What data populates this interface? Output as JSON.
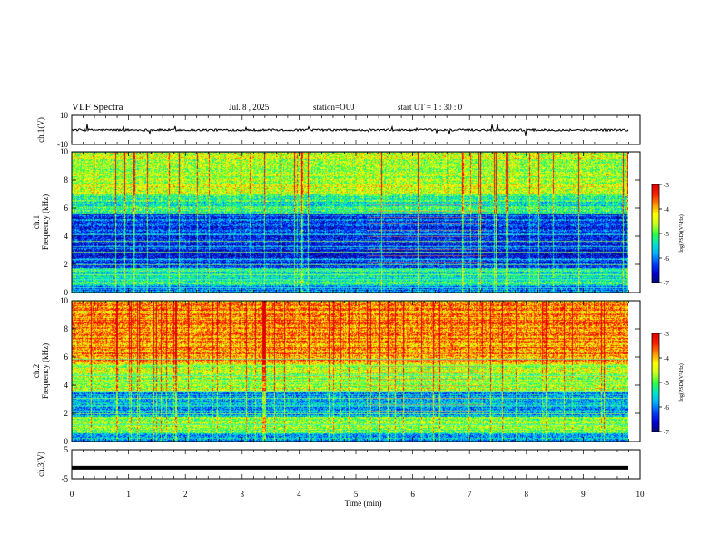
{
  "header": {
    "title": "VLF Spectra",
    "date": "Jul. 8 , 2025",
    "station": "station=OUJ",
    "start": "start UT =  1 : 30 : 0"
  },
  "colorbar": {
    "label": "log(PSD)(V²/Hz)",
    "ticks": [
      "-3",
      "-4",
      "-5",
      "-6",
      "-7"
    ]
  },
  "colors": {
    "spectrum": [
      "#0a0a70",
      "#0000d8",
      "#0044ff",
      "#00b0ff",
      "#00e8c8",
      "#30ff40",
      "#c8ff20",
      "#ffff00",
      "#ff9000",
      "#ff2000",
      "#e00000"
    ],
    "trace": "#000000"
  },
  "chart_data": [
    {
      "type": "line",
      "panel": "ch1-waveform",
      "ylabel": "ch.1(V)",
      "ylim": [
        -10,
        10
      ],
      "y_tick_labels": [
        "10",
        "-10"
      ],
      "xlim": [
        0,
        10
      ],
      "description_values": {
        "baseline": 0,
        "noise_amplitude": 1.5,
        "spike_amplitude": 6
      }
    },
    {
      "type": "heatmap",
      "panel": "ch1-spectrogram",
      "ylabel": "ch.1 Frequency (kHz)",
      "ylim": [
        0,
        10
      ],
      "y_tick_labels": [
        "0",
        "2",
        "4",
        "6",
        "8",
        "10"
      ],
      "xlim": [
        0,
        9.8
      ],
      "color_range": [
        -7,
        -3
      ],
      "band_levels": [
        {
          "f_low": 0,
          "f_high": 0.5,
          "level": 0.25
        },
        {
          "f_low": 0.5,
          "f_high": 1.8,
          "level": 0.42
        },
        {
          "f_low": 1.8,
          "f_high": 3.6,
          "level": 0.18
        },
        {
          "f_low": 3.6,
          "f_high": 5.6,
          "level": 0.2
        },
        {
          "f_low": 5.6,
          "f_high": 7.0,
          "level": 0.45
        },
        {
          "f_low": 7.0,
          "f_high": 10,
          "level": 0.62
        }
      ],
      "harmonic_lines_khz": [
        0.4,
        0.7,
        1.0,
        1.3,
        1.6,
        2.0,
        2.4,
        2.9,
        3.3,
        3.7,
        4.1
      ],
      "burst_interval_min": [
        5.2,
        7.3
      ]
    },
    {
      "type": "heatmap",
      "panel": "ch2-spectrogram",
      "ylabel": "ch.2 Frequency (kHz)",
      "ylim": [
        0,
        10
      ],
      "y_tick_labels": [
        "0",
        "2",
        "4",
        "6",
        "8",
        "10"
      ],
      "xlim": [
        0,
        9.8
      ],
      "color_range": [
        -7,
        -3
      ],
      "band_levels": [
        {
          "f_low": 0,
          "f_high": 0.6,
          "level": 0.3
        },
        {
          "f_low": 0.6,
          "f_high": 1.8,
          "level": 0.55
        },
        {
          "f_low": 1.8,
          "f_high": 3.5,
          "level": 0.3
        },
        {
          "f_low": 3.5,
          "f_high": 5.5,
          "level": 0.6
        },
        {
          "f_low": 5.5,
          "f_high": 10,
          "level": 0.8
        }
      ],
      "harmonic_lines_khz": [
        1.2,
        2.0,
        2.6,
        3.1,
        3.6,
        4.2,
        4.7,
        5.4,
        5.9
      ],
      "burst_interval_min": [
        5.2,
        7.3
      ]
    },
    {
      "type": "line",
      "panel": "ch3-waveform",
      "ylabel": "ch.3(V)",
      "ylim": [
        -5,
        5
      ],
      "y_tick_labels": [
        "5",
        "-5"
      ],
      "xlim": [
        0,
        10
      ],
      "description_values": {
        "baseline": -1.2
      },
      "xlabel": "Time  (min)",
      "x_tick_labels": [
        "0",
        "1",
        "2",
        "3",
        "4",
        "5",
        "6",
        "7",
        "8",
        "9",
        "10"
      ]
    }
  ]
}
